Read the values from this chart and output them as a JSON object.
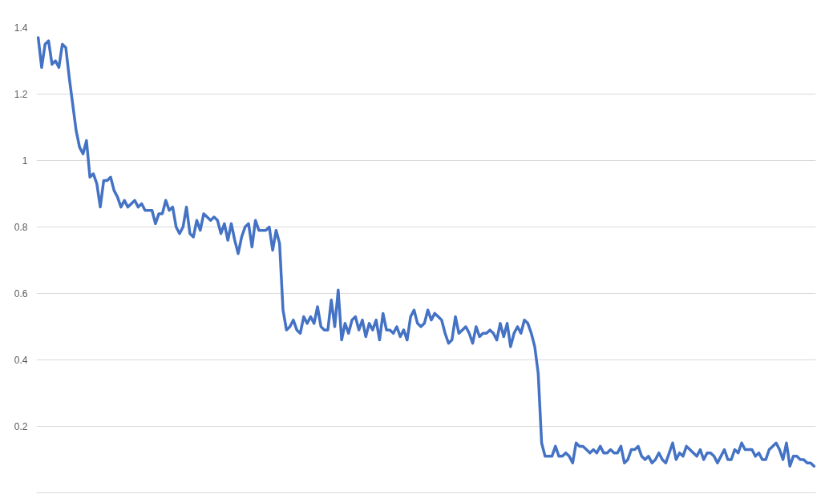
{
  "chart_data": {
    "type": "line",
    "ylim": [
      0,
      1.4
    ],
    "yticks": [
      0.2,
      0.4,
      0.6,
      0.8,
      1,
      1.2,
      1.4
    ],
    "grid": "y",
    "series": [
      {
        "color": "#4472c4",
        "values": [
          1.37,
          1.28,
          1.35,
          1.36,
          1.29,
          1.3,
          1.28,
          1.35,
          1.34,
          1.25,
          1.17,
          1.09,
          1.04,
          1.02,
          1.06,
          0.95,
          0.96,
          0.93,
          0.86,
          0.94,
          0.94,
          0.95,
          0.91,
          0.89,
          0.86,
          0.88,
          0.86,
          0.87,
          0.88,
          0.86,
          0.87,
          0.85,
          0.85,
          0.85,
          0.81,
          0.84,
          0.84,
          0.88,
          0.85,
          0.86,
          0.8,
          0.78,
          0.8,
          0.86,
          0.78,
          0.77,
          0.82,
          0.79,
          0.84,
          0.83,
          0.82,
          0.83,
          0.82,
          0.78,
          0.81,
          0.76,
          0.81,
          0.76,
          0.72,
          0.77,
          0.8,
          0.81,
          0.74,
          0.82,
          0.79,
          0.79,
          0.79,
          0.8,
          0.73,
          0.79,
          0.75,
          0.55,
          0.49,
          0.5,
          0.52,
          0.49,
          0.48,
          0.53,
          0.51,
          0.53,
          0.51,
          0.56,
          0.5,
          0.49,
          0.49,
          0.58,
          0.5,
          0.61,
          0.46,
          0.51,
          0.48,
          0.52,
          0.53,
          0.49,
          0.52,
          0.47,
          0.51,
          0.49,
          0.52,
          0.46,
          0.54,
          0.49,
          0.49,
          0.48,
          0.5,
          0.47,
          0.49,
          0.46,
          0.53,
          0.55,
          0.51,
          0.5,
          0.51,
          0.55,
          0.52,
          0.54,
          0.53,
          0.52,
          0.48,
          0.45,
          0.46,
          0.53,
          0.48,
          0.49,
          0.5,
          0.48,
          0.45,
          0.5,
          0.47,
          0.48,
          0.48,
          0.49,
          0.48,
          0.46,
          0.51,
          0.47,
          0.51,
          0.44,
          0.48,
          0.5,
          0.48,
          0.52,
          0.51,
          0.48,
          0.44,
          0.36,
          0.15,
          0.11,
          0.11,
          0.11,
          0.14,
          0.11,
          0.11,
          0.12,
          0.11,
          0.09,
          0.15,
          0.14,
          0.14,
          0.13,
          0.12,
          0.13,
          0.12,
          0.14,
          0.12,
          0.12,
          0.13,
          0.12,
          0.12,
          0.14,
          0.09,
          0.1,
          0.13,
          0.13,
          0.14,
          0.11,
          0.1,
          0.11,
          0.09,
          0.1,
          0.12,
          0.1,
          0.09,
          0.12,
          0.15,
          0.1,
          0.12,
          0.11,
          0.14,
          0.13,
          0.12,
          0.11,
          0.13,
          0.1,
          0.12,
          0.12,
          0.11,
          0.09,
          0.11,
          0.13,
          0.1,
          0.1,
          0.13,
          0.12,
          0.15,
          0.13,
          0.13,
          0.13,
          0.11,
          0.12,
          0.1,
          0.1,
          0.13,
          0.14,
          0.15,
          0.13,
          0.1,
          0.15,
          0.08,
          0.11,
          0.11,
          0.1,
          0.1,
          0.09,
          0.09,
          0.08
        ]
      }
    ]
  }
}
